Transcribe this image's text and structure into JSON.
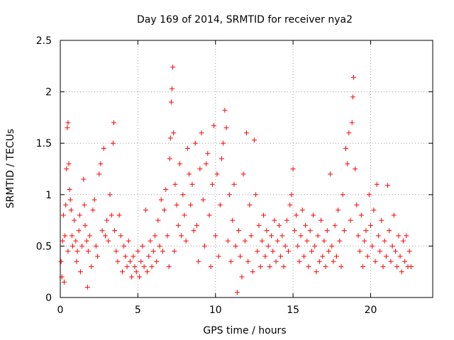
{
  "chart_data": {
    "type": "scatter",
    "title": "Day 169 of 2014, SRMTID for receiver nya2",
    "xlabel": "GPS time / hours",
    "ylabel": "SRMTID / TECUs",
    "xlim": [
      0,
      24
    ],
    "ylim": [
      0,
      2.5
    ],
    "x_ticks": [
      0,
      5,
      10,
      15,
      20
    ],
    "x_tick_labels": [
      "0",
      "5",
      "10",
      "15",
      "20"
    ],
    "y_ticks": [
      0,
      0.5,
      1,
      1.5,
      2,
      2.5
    ],
    "y_tick_labels": [
      "0",
      "0.5",
      "1",
      "1.5",
      "2",
      "2.5"
    ],
    "grid": true,
    "marker": "+",
    "marker_color": "#ff0000",
    "series": [
      {
        "name": "SRMTID",
        "points": [
          [
            0.05,
            0.35
          ],
          [
            0.1,
            0.2
          ],
          [
            0.15,
            0.55
          ],
          [
            0.2,
            0.8
          ],
          [
            0.25,
            0.15
          ],
          [
            0.3,
            0.6
          ],
          [
            0.35,
            0.9
          ],
          [
            0.4,
            1.25
          ],
          [
            0.45,
            1.65
          ],
          [
            0.5,
            1.7
          ],
          [
            0.5,
            0.45
          ],
          [
            0.55,
            1.3
          ],
          [
            0.6,
            1.05
          ],
          [
            0.65,
            0.95
          ],
          [
            0.7,
            0.85
          ],
          [
            0.75,
            0.6
          ],
          [
            0.8,
            0.5
          ],
          [
            0.9,
            0.75
          ],
          [
            1.0,
            0.55
          ],
          [
            1.05,
            0.35
          ],
          [
            1.1,
            0.45
          ],
          [
            1.2,
            0.65
          ],
          [
            1.25,
            0.8
          ],
          [
            1.3,
            0.25
          ],
          [
            1.4,
            0.5
          ],
          [
            1.5,
            1.15
          ],
          [
            1.55,
            0.9
          ],
          [
            1.6,
            0.7
          ],
          [
            1.7,
            0.55
          ],
          [
            1.75,
            0.1
          ],
          [
            1.8,
            0.45
          ],
          [
            1.9,
            0.6
          ],
          [
            2.0,
            0.3
          ],
          [
            2.1,
            0.85
          ],
          [
            2.2,
            0.95
          ],
          [
            2.3,
            0.5
          ],
          [
            2.4,
            0.4
          ],
          [
            2.5,
            1.2
          ],
          [
            2.6,
            1.3
          ],
          [
            2.7,
            0.65
          ],
          [
            2.8,
            1.45
          ],
          [
            2.9,
            0.6
          ],
          [
            3.0,
            0.75
          ],
          [
            3.1,
            0.55
          ],
          [
            3.2,
            1.0
          ],
          [
            3.3,
            0.8
          ],
          [
            3.4,
            1.5
          ],
          [
            3.45,
            1.7
          ],
          [
            3.5,
            0.65
          ],
          [
            3.6,
            0.45
          ],
          [
            3.7,
            0.35
          ],
          [
            3.8,
            0.8
          ],
          [
            3.9,
            0.6
          ],
          [
            4.0,
            0.25
          ],
          [
            4.1,
            0.5
          ],
          [
            4.2,
            0.4
          ],
          [
            4.3,
            0.3
          ],
          [
            4.4,
            0.55
          ],
          [
            4.5,
            0.35
          ],
          [
            4.6,
            0.2
          ],
          [
            4.7,
            0.4
          ],
          [
            4.8,
            0.3
          ],
          [
            4.9,
            0.25
          ],
          [
            5.0,
            0.45
          ],
          [
            5.1,
            0.2
          ],
          [
            5.2,
            0.35
          ],
          [
            5.3,
            0.5
          ],
          [
            5.4,
            0.3
          ],
          [
            5.5,
            0.85
          ],
          [
            5.6,
            0.25
          ],
          [
            5.7,
            0.4
          ],
          [
            5.8,
            0.55
          ],
          [
            5.9,
            0.3
          ],
          [
            6.0,
            0.45
          ],
          [
            6.1,
            0.6
          ],
          [
            6.2,
            0.35
          ],
          [
            6.3,
            0.75
          ],
          [
            6.4,
            0.5
          ],
          [
            6.5,
            0.95
          ],
          [
            6.6,
            0.45
          ],
          [
            6.7,
            0.85
          ],
          [
            6.8,
            1.05
          ],
          [
            6.9,
            0.6
          ],
          [
            7.0,
            0.3
          ],
          [
            7.05,
            1.35
          ],
          [
            7.1,
            1.55
          ],
          [
            7.15,
            1.9
          ],
          [
            7.2,
            2.03
          ],
          [
            7.25,
            2.24
          ],
          [
            7.3,
            1.6
          ],
          [
            7.35,
            0.45
          ],
          [
            7.4,
            1.1
          ],
          [
            7.5,
            0.9
          ],
          [
            7.6,
            0.7
          ],
          [
            7.7,
            1.3
          ],
          [
            7.8,
            0.6
          ],
          [
            7.9,
            1.0
          ],
          [
            8.0,
            0.8
          ],
          [
            8.1,
            0.55
          ],
          [
            8.2,
            1.45
          ],
          [
            8.3,
            1.2
          ],
          [
            8.4,
            0.9
          ],
          [
            8.5,
            1.1
          ],
          [
            8.6,
            0.65
          ],
          [
            8.7,
            1.5
          ],
          [
            8.8,
            0.7
          ],
          [
            8.9,
            0.35
          ],
          [
            9.0,
            1.25
          ],
          [
            9.1,
            1.6
          ],
          [
            9.2,
            0.95
          ],
          [
            9.3,
            0.5
          ],
          [
            9.4,
            1.3
          ],
          [
            9.5,
            1.4
          ],
          [
            9.6,
            0.8
          ],
          [
            9.7,
            0.3
          ],
          [
            9.8,
            1.1
          ],
          [
            9.9,
            1.67
          ],
          [
            10.0,
            0.6
          ],
          [
            10.1,
            1.2
          ],
          [
            10.2,
            0.4
          ],
          [
            10.3,
            0.9
          ],
          [
            10.4,
            1.35
          ],
          [
            10.5,
            1.5
          ],
          [
            10.6,
            1.82
          ],
          [
            10.7,
            1.65
          ],
          [
            10.8,
            0.55
          ],
          [
            10.9,
            1.0
          ],
          [
            11.0,
            0.35
          ],
          [
            11.1,
            0.75
          ],
          [
            11.2,
            1.1
          ],
          [
            11.3,
            0.5
          ],
          [
            11.4,
            0.05
          ],
          [
            11.5,
            0.65
          ],
          [
            11.6,
            0.4
          ],
          [
            11.7,
            0.2
          ],
          [
            11.8,
            1.2
          ],
          [
            11.9,
            0.55
          ],
          [
            12.0,
            1.6
          ],
          [
            12.1,
            0.35
          ],
          [
            12.2,
            0.9
          ],
          [
            12.3,
            0.6
          ],
          [
            12.4,
            0.25
          ],
          [
            12.5,
            1.53
          ],
          [
            12.6,
            1.0
          ],
          [
            12.7,
            0.45
          ],
          [
            12.8,
            0.7
          ],
          [
            12.9,
            0.3
          ],
          [
            13.0,
            0.55
          ],
          [
            13.1,
            0.8
          ],
          [
            13.2,
            0.4
          ],
          [
            13.3,
            0.65
          ],
          [
            13.4,
            0.5
          ],
          [
            13.5,
            0.3
          ],
          [
            13.6,
            0.6
          ],
          [
            13.7,
            0.45
          ],
          [
            13.8,
            0.75
          ],
          [
            13.9,
            0.35
          ],
          [
            14.0,
            0.55
          ],
          [
            14.1,
            0.7
          ],
          [
            14.2,
            0.4
          ],
          [
            14.3,
            0.6
          ],
          [
            14.4,
            0.3
          ],
          [
            14.5,
            0.5
          ],
          [
            14.6,
            0.75
          ],
          [
            14.7,
            0.45
          ],
          [
            14.8,
            0.9
          ],
          [
            14.9,
            1.0
          ],
          [
            15.0,
            1.25
          ],
          [
            15.1,
            0.65
          ],
          [
            15.2,
            0.8
          ],
          [
            15.3,
            0.5
          ],
          [
            15.4,
            0.35
          ],
          [
            15.5,
            0.6
          ],
          [
            15.6,
            0.85
          ],
          [
            15.7,
            0.4
          ],
          [
            15.8,
            0.7
          ],
          [
            15.9,
            0.55
          ],
          [
            16.0,
            0.3
          ],
          [
            16.1,
            0.65
          ],
          [
            16.2,
            0.45
          ],
          [
            16.3,
            0.8
          ],
          [
            16.4,
            0.5
          ],
          [
            16.5,
            0.25
          ],
          [
            16.6,
            0.6
          ],
          [
            16.7,
            0.35
          ],
          [
            16.8,
            0.75
          ],
          [
            16.9,
            0.4
          ],
          [
            17.0,
            0.55
          ],
          [
            17.1,
            0.3
          ],
          [
            17.2,
            0.65
          ],
          [
            17.3,
            0.45
          ],
          [
            17.4,
            1.2
          ],
          [
            17.5,
            0.5
          ],
          [
            17.6,
            0.35
          ],
          [
            17.7,
            0.7
          ],
          [
            17.8,
            0.4
          ],
          [
            17.9,
            0.85
          ],
          [
            18.0,
            0.55
          ],
          [
            18.1,
            0.3
          ],
          [
            18.2,
            1.0
          ],
          [
            18.3,
            0.65
          ],
          [
            18.4,
            1.45
          ],
          [
            18.5,
            1.3
          ],
          [
            18.6,
            1.6
          ],
          [
            18.7,
            0.75
          ],
          [
            18.8,
            1.7
          ],
          [
            18.85,
            1.95
          ],
          [
            18.9,
            2.14
          ],
          [
            19.0,
            1.25
          ],
          [
            19.1,
            0.9
          ],
          [
            19.2,
            0.6
          ],
          [
            19.3,
            0.45
          ],
          [
            19.4,
            0.8
          ],
          [
            19.5,
            0.3
          ],
          [
            19.6,
            0.55
          ],
          [
            19.7,
            0.65
          ],
          [
            19.8,
            0.4
          ],
          [
            19.9,
            1.0
          ],
          [
            20.0,
            0.7
          ],
          [
            20.1,
            0.5
          ],
          [
            20.2,
            0.85
          ],
          [
            20.3,
            0.35
          ],
          [
            20.4,
            1.1
          ],
          [
            20.5,
            0.6
          ],
          [
            20.6,
            0.45
          ],
          [
            20.7,
            0.75
          ],
          [
            20.8,
            0.3
          ],
          [
            20.9,
            0.55
          ],
          [
            21.0,
            0.4
          ],
          [
            21.1,
            1.09
          ],
          [
            21.2,
            0.65
          ],
          [
            21.3,
            0.35
          ],
          [
            21.4,
            0.5
          ],
          [
            21.5,
            0.8
          ],
          [
            21.6,
            0.45
          ],
          [
            21.7,
            0.3
          ],
          [
            21.8,
            0.6
          ],
          [
            21.9,
            0.4
          ],
          [
            22.0,
            0.25
          ],
          [
            22.1,
            0.55
          ],
          [
            22.2,
            0.35
          ],
          [
            22.3,
            0.6
          ],
          [
            22.4,
            0.3
          ],
          [
            22.5,
            0.45
          ],
          [
            22.6,
            0.3
          ]
        ]
      }
    ]
  }
}
